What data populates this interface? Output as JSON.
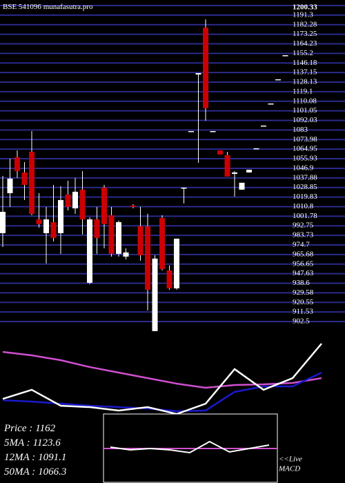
{
  "chart_data": {
    "type": "candlestick",
    "title": "BSE 541096",
    "subtitle": "munafasutra.pro",
    "ylim": [
      902.5,
      1200.33
    ],
    "yticks": [
      1200.33,
      1191.3,
      1182.28,
      1173.25,
      1164.23,
      1155.2,
      1146.18,
      1137.15,
      1128.13,
      1119.1,
      1110.08,
      1101.05,
      1092.03,
      1083,
      1073.98,
      1064.95,
      1055.93,
      1046.9,
      1037.88,
      1028.85,
      1019.83,
      1010.8,
      1001.78,
      992.75,
      983.73,
      974.7,
      965.68,
      956.65,
      947.63,
      938.6,
      929.58,
      920.55,
      911.53,
      902.5
    ],
    "grid": true,
    "up_color": "#ffffff",
    "down_color": "#cc0000",
    "grid_color": "#2b2b8c",
    "open": [
      985.8,
      1023.5,
      1057.3,
      1043.0,
      1062.5,
      998.8,
      985.8,
      996.2,
      985.8,
      1022.2,
      1009.2,
      1026.8,
      939.0,
      998.8,
      1028.7,
      1002.7,
      966.3,
      963.7,
      1011.8,
      992.3,
      992.3,
      893.5,
      1000.1,
      950.7,
      933.8,
      1028.7,
      1082.0,
      1135.3,
      1179.5,
      1082.0,
      1063.8,
      1059.3,
      1041.7,
      1026.8,
      1043.0,
      1065.8,
      1087.2,
      1108.0,
      1130.8,
      1153.5
    ],
    "high": [
      1039.8,
      1056.0,
      1063.8,
      1052.8,
      1082.0,
      1023.5,
      1010.5,
      1031.3,
      1030.0,
      1035.2,
      1037.8,
      1044.3,
      1000.8,
      1010.5,
      1031.3,
      1010.5,
      997.5,
      971.5,
      1013.1,
      1010.5,
      1004.0,
      965.0,
      1002.7,
      955.3,
      980.6,
      1028.7,
      1082.0,
      1136.6,
      1187.3,
      1082.0,
      1063.8,
      1062.5,
      1044.3,
      1033.3,
      1045.6,
      1065.8,
      1087.2,
      1108.0,
      1130.8,
      1153.5
    ],
    "low": [
      972.8,
      1010.5,
      1037.8,
      1017.0,
      1002.7,
      991.0,
      957.2,
      978.0,
      966.3,
      1007.3,
      1004.0,
      984.5,
      937.7,
      966.3,
      971.5,
      963.7,
      963.7,
      961.1,
      1009.2,
      959.8,
      913.0,
      893.5,
      950.7,
      932.5,
      932.5,
      1013.8,
      1082.0,
      1052.1,
      1091.8,
      1082.0,
      1059.9,
      1039.1,
      1020.3,
      1026.8,
      1043.0,
      1065.8,
      1087.2,
      1108.0,
      1130.8,
      1153.5
    ],
    "close": [
      1005.9,
      1037.2,
      1044.3,
      1031.3,
      1004.0,
      994.3,
      998.8,
      981.3,
      1017.0,
      1010.5,
      1024.8,
      998.8,
      998.8,
      981.3,
      994.3,
      966.3,
      996.2,
      967.6,
      1010.5,
      965.0,
      932.5,
      961.8,
      952.0,
      933.8,
      980.6,
      1028.7,
      1082.0,
      1136.6,
      1103.5,
      1082.0,
      1059.9,
      1039.1,
      1043.0,
      1033.3,
      1045.6,
      1065.8,
      1087.2,
      1108.0,
      1130.8,
      1153.5
    ],
    "indicator": {
      "ylim": [
        0,
        100
      ],
      "x": [
        0,
        4,
        8,
        12,
        16,
        20,
        24,
        28,
        32,
        36,
        40,
        44
      ],
      "series": [
        {
          "color": "#d050d0",
          "values": [
            75,
            70.8,
            65,
            56.7,
            50,
            43.3,
            36.7,
            31.7,
            35,
            35.8,
            37.5,
            43.3
          ]
        },
        {
          "color": "#1a1acc",
          "values": [
            16.7,
            15,
            12.5,
            10,
            8.3,
            6.7,
            3.3,
            4.2,
            26.7,
            33.3,
            33.3,
            50
          ]
        },
        {
          "color": "#ffffff",
          "values": [
            18.3,
            29.2,
            10,
            8.3,
            4.2,
            8.3,
            0,
            12.5,
            54.2,
            29.2,
            43.3,
            85
          ]
        }
      ]
    },
    "macd": {
      "ylim": [
        -1,
        1
      ],
      "color": "#ffffff",
      "signal_color": "#d050d0",
      "values": [
        0.04,
        -0.04,
        0,
        -0.04,
        -0.12,
        0.2,
        -0.1,
        0,
        0.1
      ]
    },
    "info": [
      {
        "label": "Price   :",
        "value": 1162
      },
      {
        "label": "5MA :",
        "value": 1123.6
      },
      {
        "label": "12MA :",
        "value": 1091.1
      },
      {
        "label": "50MA :",
        "value": 1066.3
      }
    ],
    "live_label": [
      "<<Live",
      "MACD"
    ]
  }
}
